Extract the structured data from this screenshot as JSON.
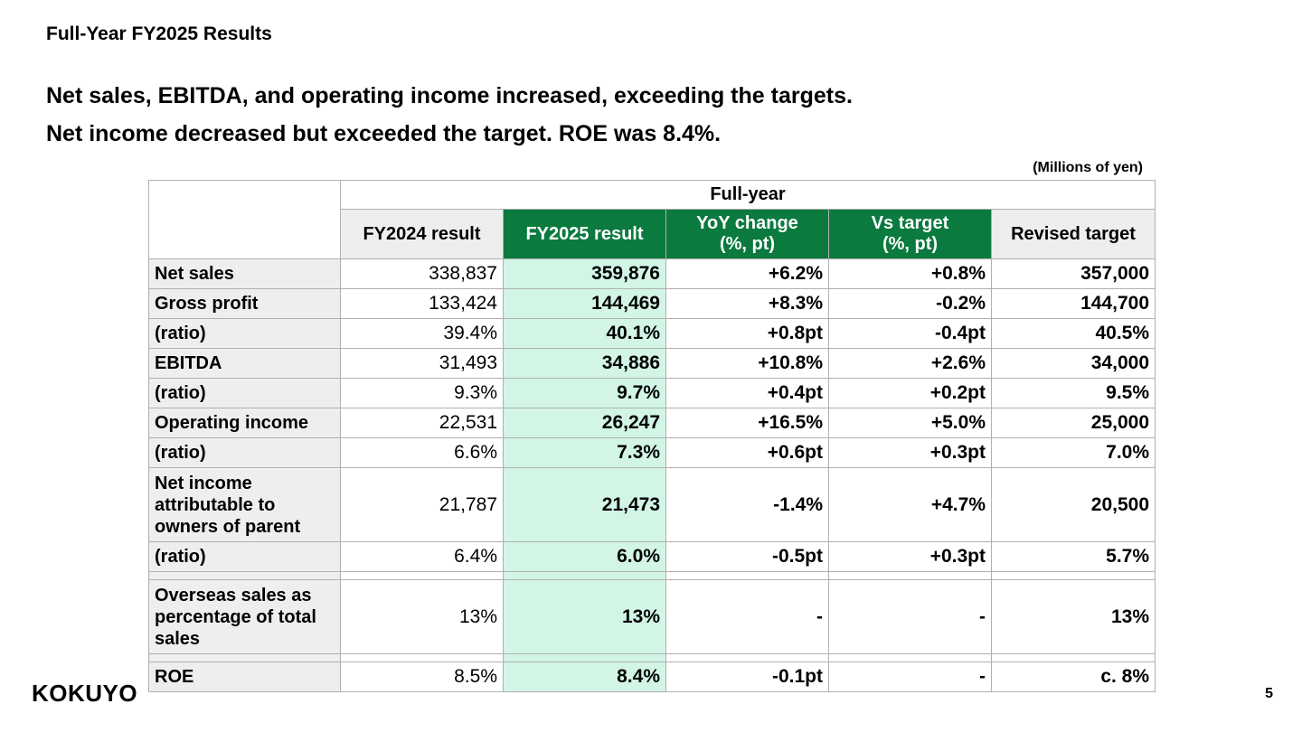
{
  "section_title": "Full-Year FY2025 Results",
  "headline": {
    "line1": "Net sales, EBITDA, and operating income increased, exceeding the targets.",
    "line2": "Net income decreased but exceeded the target. ROE was 8.4%."
  },
  "unit_note": "(Millions of yen)",
  "table": {
    "group_header": "Full-year",
    "columns": [
      "FY2024 result",
      "FY2025 result",
      "YoY change\n(%, pt)",
      "Vs target\n(%, pt)",
      "Revised target"
    ],
    "rows": [
      {
        "label": "Net sales",
        "fy2024": "338,837",
        "fy2025": "359,876",
        "yoy": "+6.2%",
        "vs_target": "+0.8%",
        "revised_target": "357,000"
      },
      {
        "label": "Gross profit",
        "fy2024": "133,424",
        "fy2025": "144,469",
        "yoy": "+8.3%",
        "vs_target": "-0.2%",
        "revised_target": "144,700"
      },
      {
        "label": "(ratio)",
        "fy2024": "39.4%",
        "fy2025": "40.1%",
        "yoy": "+0.8pt",
        "vs_target": "-0.4pt",
        "revised_target": "40.5%"
      },
      {
        "label": "EBITDA",
        "fy2024": "31,493",
        "fy2025": "34,886",
        "yoy": "+10.8%",
        "vs_target": "+2.6%",
        "revised_target": "34,000"
      },
      {
        "label": "(ratio)",
        "fy2024": "9.3%",
        "fy2025": "9.7%",
        "yoy": "+0.4pt",
        "vs_target": "+0.2pt",
        "revised_target": "9.5%"
      },
      {
        "label": "Operating income",
        "fy2024": "22,531",
        "fy2025": "26,247",
        "yoy": "+16.5%",
        "vs_target": "+5.0%",
        "revised_target": "25,000"
      },
      {
        "label": "(ratio)",
        "fy2024": "6.6%",
        "fy2025": "7.3%",
        "yoy": "+0.6pt",
        "vs_target": "+0.3pt",
        "revised_target": "7.0%"
      },
      {
        "label": "Net income attributable to owners of parent",
        "fy2024": "21,787",
        "fy2025": "21,473",
        "yoy": "-1.4%",
        "vs_target": "+4.7%",
        "revised_target": "20,500"
      },
      {
        "label": "(ratio)",
        "fy2024": "6.4%",
        "fy2025": "6.0%",
        "yoy": "-0.5pt",
        "vs_target": "+0.3pt",
        "revised_target": "5.7%"
      },
      {
        "label": "Overseas sales as percentage of total sales",
        "fy2024": "13%",
        "fy2025": "13%",
        "yoy": "-",
        "vs_target": "-",
        "revised_target": "13%"
      },
      {
        "label": "ROE",
        "fy2024": "8.5%",
        "fy2025": "8.4%",
        "yoy": "-0.1pt",
        "vs_target": "-",
        "revised_target": "c. 8%"
      }
    ]
  },
  "logo_text": "KOKUYO",
  "page_number": "5",
  "colors": {
    "header_green": "#0a7a3e",
    "highlight_green": "#d2f5e6",
    "label_grey": "#eeeeee"
  }
}
